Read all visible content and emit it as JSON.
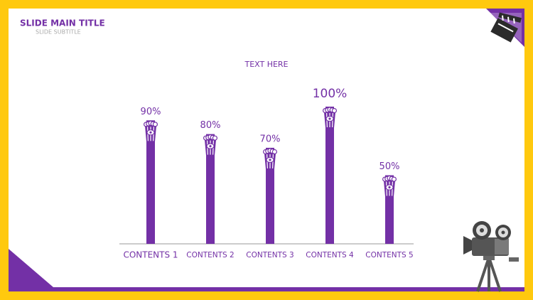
{
  "header": {
    "title": "SLIDE MAIN TITLE",
    "subtitle": "SLIDE SUBTITLE"
  },
  "chart_data": {
    "type": "bar",
    "title": "TEXT HERE",
    "categories": [
      "CONTENTS 1",
      "CONTENTS 2",
      "CONTENTS 3",
      "CONTENTS 4",
      "CONTENTS 5"
    ],
    "values": [
      90,
      80,
      70,
      100,
      50
    ],
    "value_labels": [
      "90%",
      "80%",
      "70%",
      "100%",
      "50%"
    ],
    "color": "#7330a6"
  }
}
